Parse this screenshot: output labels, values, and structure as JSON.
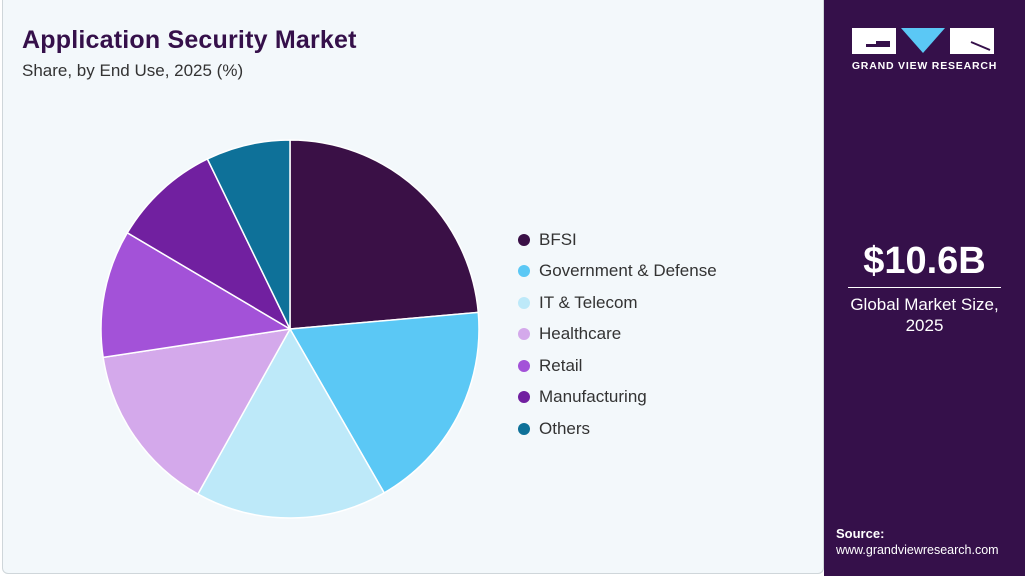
{
  "header": {
    "title": "Application Security Market",
    "subtitle": "Share, by End Use, 2025 (%)"
  },
  "brand": {
    "name": "GRAND VIEW RESEARCH"
  },
  "sidebar": {
    "market_size": "$10.6B",
    "caption": "Global Market Size, 2025",
    "source_label": "Source:",
    "source_url": "www.grandviewresearch.com"
  },
  "chart_data": {
    "type": "pie",
    "title": "Application Security Market",
    "subtitle": "Share, by End Use, 2025 (%)",
    "start": "12 o'clock, clockwise",
    "legend": "right",
    "categories": [
      "BFSI",
      "Government & Defense",
      "IT & Telecom",
      "Healthcare",
      "Retail",
      "Manufacturing",
      "Others"
    ],
    "values": [
      23.6,
      18.1,
      16.4,
      14.5,
      10.9,
      9.3,
      7.2
    ],
    "colors": [
      "#3a1046",
      "#5bc8f5",
      "#bde9f9",
      "#d4a9eb",
      "#a352d8",
      "#7120a0",
      "#0e7199"
    ]
  }
}
